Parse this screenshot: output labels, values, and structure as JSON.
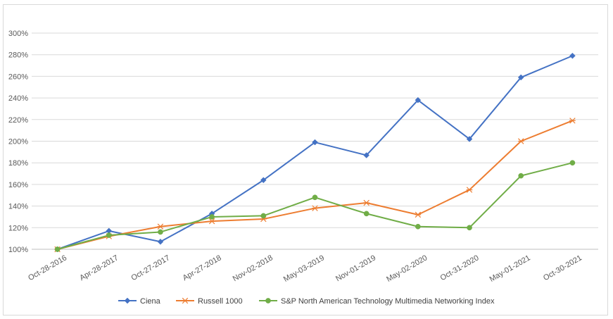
{
  "chart_data": {
    "type": "line",
    "title": "",
    "xlabel": "",
    "ylabel": "",
    "categories": [
      "Oct-28-2016",
      "Apr-28-2017",
      "Oct-27-2017",
      "Apr-27-2018",
      "Nov-02-2018",
      "May-03-2019",
      "Nov-01-2019",
      "May-02-2020",
      "Oct-31-2020",
      "May-01-2021",
      "Oct-30-2021"
    ],
    "ylim": [
      100,
      300
    ],
    "yticks": [
      100,
      120,
      140,
      160,
      180,
      200,
      220,
      240,
      260,
      280,
      300
    ],
    "y_unit": "%",
    "grid": "horizontal",
    "legend_position": "bottom",
    "series": [
      {
        "name": "Ciena",
        "color": "#4472c4",
        "marker": "diamond",
        "values": [
          100,
          117,
          107,
          133,
          164,
          199,
          187,
          238,
          202,
          259,
          279
        ]
      },
      {
        "name": "Russell 1000",
        "color": "#ed7d31",
        "marker": "star",
        "values": [
          100,
          112,
          121,
          126,
          128,
          138,
          143,
          132,
          155,
          200,
          219
        ]
      },
      {
        "name": "S&P North American Technology Multimedia Networking Index",
        "color": "#70ad47",
        "marker": "circle",
        "values": [
          100,
          113,
          116,
          130,
          131,
          148,
          133,
          121,
          120,
          168,
          180
        ]
      }
    ]
  }
}
